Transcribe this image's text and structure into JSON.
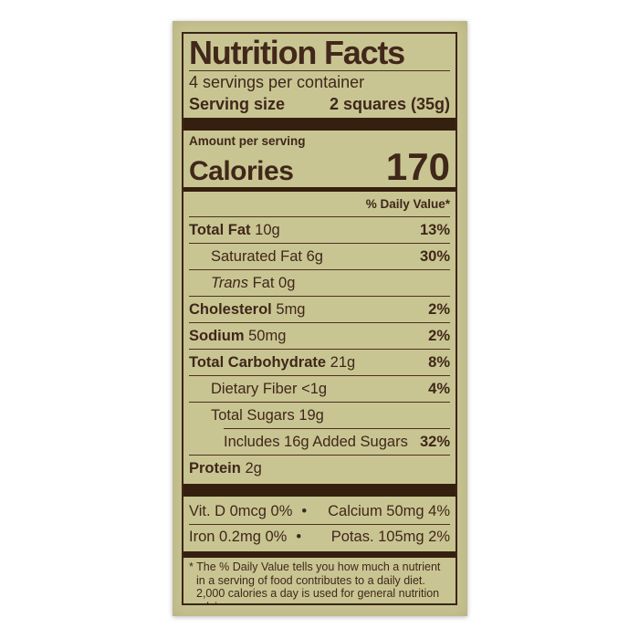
{
  "colors": {
    "page_bg": "#ffffff",
    "label_bg": "#c9c593",
    "ink": "#3f2719",
    "bar": "#35200f"
  },
  "label": {
    "title": "Nutrition Facts",
    "servings_per_container": "4 servings per container",
    "serving_size": {
      "label": "Serving size",
      "value": "2 squares (35g)"
    },
    "amount_per_serving": "Amount per serving",
    "calories": {
      "label": "Calories",
      "value": "170"
    },
    "daily_value_header": "% Daily Value*",
    "nutrients": [
      {
        "name": "Total Fat",
        "amount": "10g",
        "daily_value": "13%"
      },
      {
        "name": "Saturated Fat",
        "amount": "6g",
        "daily_value": "30%"
      },
      {
        "name_italic": "Trans",
        "name": "Fat",
        "amount": "0g",
        "daily_value": ""
      },
      {
        "name": "Cholesterol",
        "amount": "5mg",
        "daily_value": "2%"
      },
      {
        "name": "Sodium",
        "amount": "50mg",
        "daily_value": "2%"
      },
      {
        "name": "Total Carbohydrate",
        "amount": "21g",
        "daily_value": "8%"
      },
      {
        "name": "Dietary Fiber",
        "amount": "<1g",
        "daily_value": "4%"
      },
      {
        "name": "Total Sugars",
        "amount": "19g",
        "daily_value": ""
      },
      {
        "name": "Includes 16g Added Sugars",
        "amount": "",
        "daily_value": "32%"
      },
      {
        "name": "Protein",
        "amount": "2g",
        "daily_value": ""
      }
    ],
    "micronutrients": {
      "separator": "•",
      "rows": [
        {
          "left": "Vit. D 0mcg 0%",
          "right": "Calcium 50mg 4%"
        },
        {
          "left": "Iron 0.2mg 0%",
          "right": "Potas. 105mg 2%"
        }
      ]
    },
    "footnote": "* The % Daily Value tells you how much a nutrient in a serving of food contributes to a daily diet. 2,000 calories a day is used for general nutrition advice."
  }
}
